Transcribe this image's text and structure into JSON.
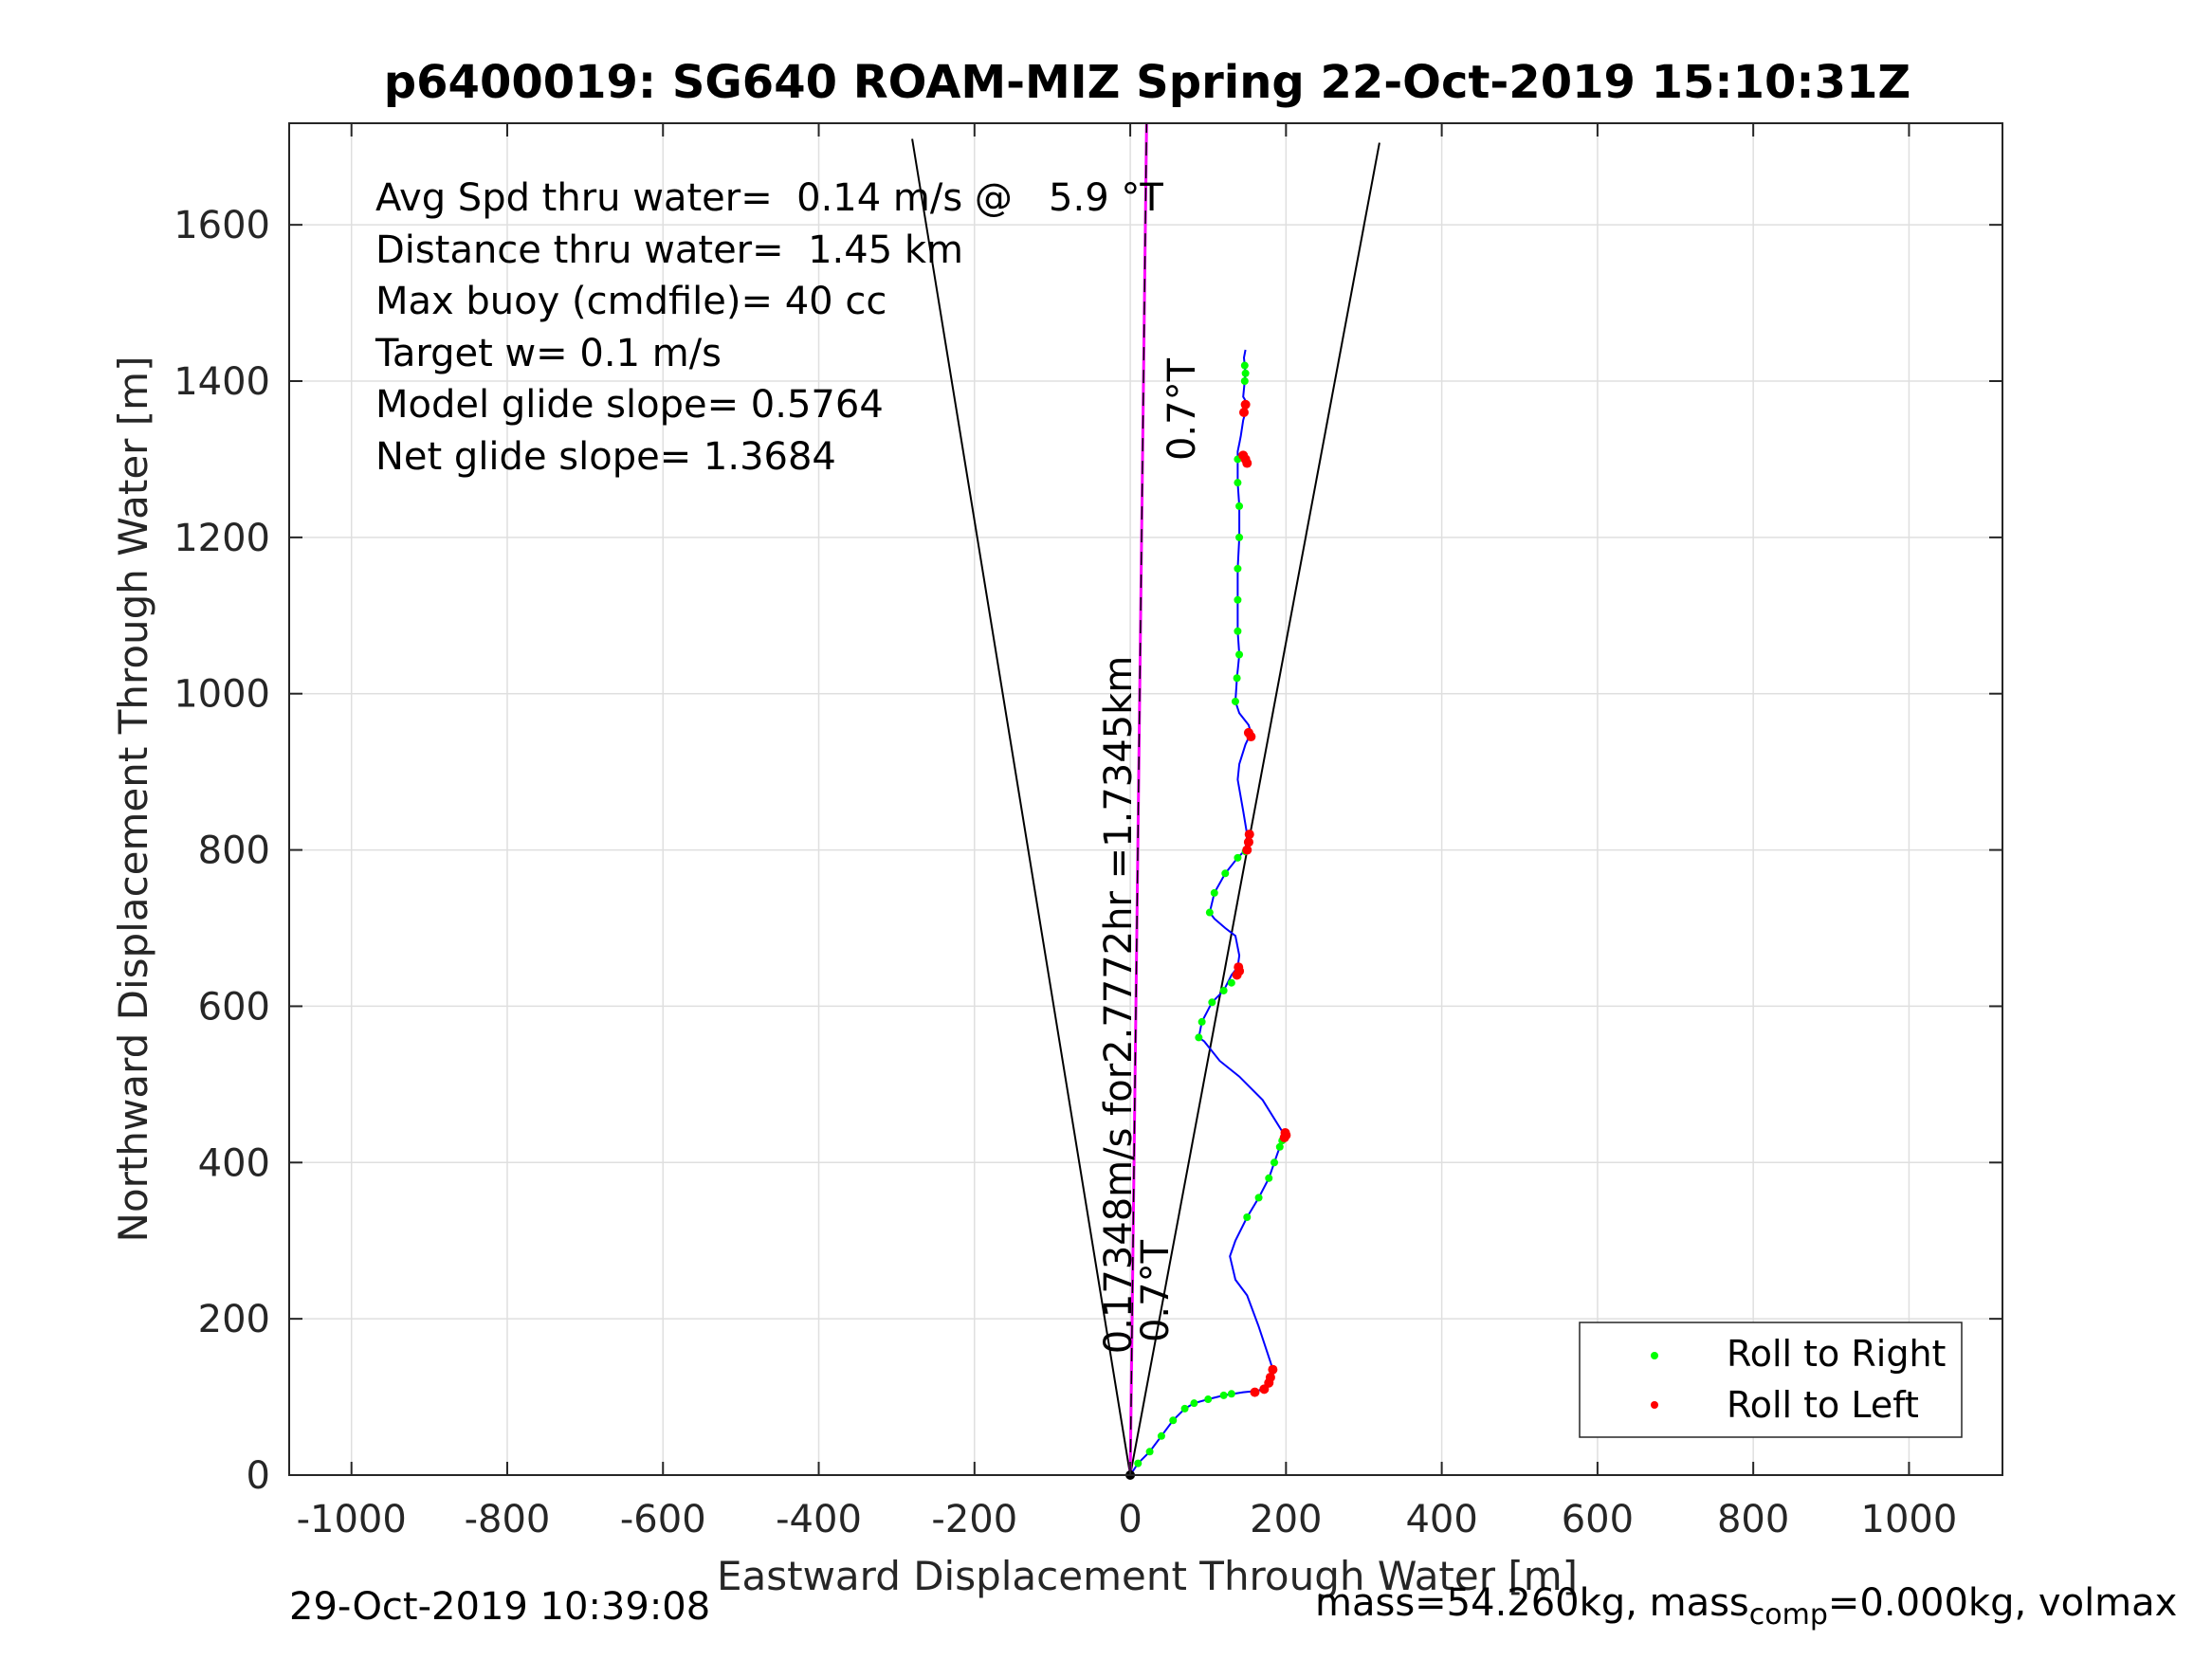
{
  "chart_data": {
    "type": "scatter",
    "title": "p6400019: SG640 ROAM-MIZ Spring 22-Oct-2019 15:10:31Z",
    "xlabel": "Eastward Displacement Through Water [m]",
    "ylabel": "Northward Displacement Through Water [m]",
    "xlim": [
      -1080,
      1120
    ],
    "ylim": [
      0,
      1730
    ],
    "xticks": [
      -1000,
      -800,
      -600,
      -400,
      -200,
      0,
      200,
      400,
      600,
      800,
      1000
    ],
    "yticks": [
      0,
      200,
      400,
      600,
      800,
      1000,
      1200,
      1400,
      1600
    ],
    "grid": true,
    "legend_position": "bottom-right",
    "colors": {
      "track": "#0000ff",
      "roll_right": "#00ff00",
      "roll_left": "#ff0000",
      "heading": "#ff00ff",
      "cone": "#000000"
    },
    "annotations": [
      "Avg Spd thru water=  0.14 m/s @   5.9 °T",
      "Distance thru water=  1.45 km",
      "Max buoy (cmdfile)= 40 cc",
      "Target w= 0.1 m/s",
      "Model glide slope= 0.5764",
      "Net glide slope= 1.3684"
    ],
    "rotated_labels": {
      "heading_top": "0.7°T",
      "heading_bottom": "0.7°T",
      "speed": "0.17348m/s for2.7772hr =1.7345km"
    },
    "cone_lines": [
      {
        "x": [
          0,
          -280
        ],
        "y": [
          0,
          1710
        ]
      },
      {
        "x": [
          0,
          320
        ],
        "y": [
          0,
          1705
        ]
      }
    ],
    "heading_line": {
      "x": [
        0,
        21
      ],
      "y": [
        0,
        1730
      ]
    },
    "track": {
      "x": [
        0,
        10,
        25,
        40,
        55,
        70,
        82,
        100,
        120,
        145,
        165,
        178,
        183,
        180,
        165,
        150,
        135,
        128,
        135,
        150,
        165,
        178,
        185,
        192,
        200,
        195,
        170,
        140,
        115,
        95,
        88,
        92,
        105,
        120,
        130,
        138,
        140,
        135,
        122,
        108,
        102,
        108,
        122,
        138,
        148,
        150,
        145,
        138,
        140,
        148,
        155,
        152,
        140,
        135,
        137,
        140,
        138,
        138,
        138,
        140,
        140,
        138,
        138,
        138,
        140,
        142,
        145,
        148,
        150,
        148,
        145,
        147,
        148,
        147,
        146,
        148
      ],
      "y": [
        0,
        15,
        30,
        50,
        70,
        85,
        92,
        97,
        102,
        106,
        108,
        118,
        135,
        145,
        190,
        230,
        250,
        280,
        300,
        330,
        355,
        380,
        400,
        420,
        435,
        440,
        480,
        510,
        530,
        555,
        560,
        580,
        605,
        620,
        640,
        650,
        665,
        690,
        700,
        712,
        720,
        745,
        770,
        790,
        800,
        820,
        850,
        890,
        910,
        935,
        950,
        960,
        975,
        990,
        1020,
        1050,
        1080,
        1120,
        1160,
        1200,
        1240,
        1270,
        1300,
        1310,
        1320,
        1330,
        1350,
        1360,
        1370,
        1375,
        1380,
        1400,
        1410,
        1420,
        1430,
        1440
      ]
    },
    "roll_right": {
      "x": [
        10,
        25,
        40,
        55,
        70,
        82,
        100,
        120,
        130,
        150,
        165,
        178,
        185,
        192,
        195,
        88,
        92,
        105,
        120,
        130,
        102,
        108,
        122,
        138,
        148,
        135,
        137,
        140,
        138,
        138,
        138,
        140,
        140,
        138,
        138,
        147,
        148,
        147
      ],
      "y": [
        15,
        30,
        50,
        70,
        85,
        92,
        97,
        102,
        104,
        330,
        355,
        380,
        400,
        420,
        428,
        560,
        580,
        605,
        620,
        630,
        720,
        745,
        770,
        790,
        798,
        990,
        1020,
        1050,
        1080,
        1120,
        1160,
        1200,
        1240,
        1270,
        1300,
        1400,
        1410,
        1420
      ]
    },
    "roll_left": {
      "x": [
        160,
        172,
        178,
        183,
        180,
        198,
        200,
        199,
        137,
        140,
        139,
        150,
        152,
        153,
        155,
        152,
        150,
        148,
        145,
        146,
        148
      ],
      "y": [
        106,
        110,
        118,
        135,
        125,
        432,
        435,
        438,
        640,
        645,
        650,
        800,
        810,
        820,
        945,
        950,
        1295,
        1300,
        1305,
        1360,
        1370
      ]
    },
    "legend": [
      {
        "label": "Roll to Right",
        "color": "#00ff00"
      },
      {
        "label": "Roll to Left",
        "color": "#ff0000"
      }
    ]
  },
  "footer": {
    "timestamp": "29-Oct-2019 10:39:08",
    "mass_main": "mass=54.260kg, mass",
    "mass_sub": "comp",
    "mass_rest": "=0.000kg, volmax"
  }
}
